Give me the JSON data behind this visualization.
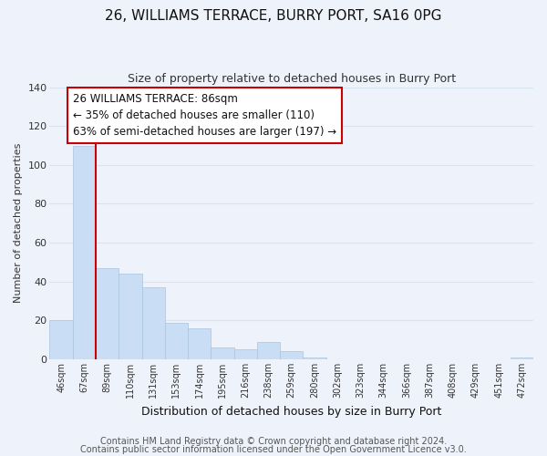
{
  "title": "26, WILLIAMS TERRACE, BURRY PORT, SA16 0PG",
  "subtitle": "Size of property relative to detached houses in Burry Port",
  "xlabel": "Distribution of detached houses by size in Burry Port",
  "ylabel": "Number of detached properties",
  "bar_color": "#c9ddf5",
  "bar_edge_color": "#aac4e0",
  "background_color": "#eef2fa",
  "grid_color": "#d8e4f0",
  "tick_labels": [
    "46sqm",
    "67sqm",
    "89sqm",
    "110sqm",
    "131sqm",
    "153sqm",
    "174sqm",
    "195sqm",
    "216sqm",
    "238sqm",
    "259sqm",
    "280sqm",
    "302sqm",
    "323sqm",
    "344sqm",
    "366sqm",
    "387sqm",
    "408sqm",
    "429sqm",
    "451sqm",
    "472sqm"
  ],
  "bar_heights": [
    20,
    110,
    47,
    44,
    37,
    19,
    16,
    6,
    5,
    9,
    4,
    1,
    0,
    0,
    0,
    0,
    0,
    0,
    0,
    0,
    1
  ],
  "ylim": [
    0,
    140
  ],
  "yticks": [
    0,
    20,
    40,
    60,
    80,
    100,
    120,
    140
  ],
  "property_line_x": 2,
  "property_line_color": "#cc0000",
  "annotation_text": "26 WILLIAMS TERRACE: 86sqm\n← 35% of detached houses are smaller (110)\n63% of semi-detached houses are larger (197) →",
  "annotation_box_facecolor": "#ffffff",
  "annotation_box_edgecolor": "#cc0000",
  "footer_line1": "Contains HM Land Registry data © Crown copyright and database right 2024.",
  "footer_line2": "Contains public sector information licensed under the Open Government Licence v3.0.",
  "title_fontsize": 11,
  "subtitle_fontsize": 9,
  "ylabel_fontsize": 8,
  "xlabel_fontsize": 9,
  "annotation_fontsize": 8.5,
  "tick_fontsize": 7,
  "ytick_fontsize": 8,
  "footer_fontsize": 7
}
